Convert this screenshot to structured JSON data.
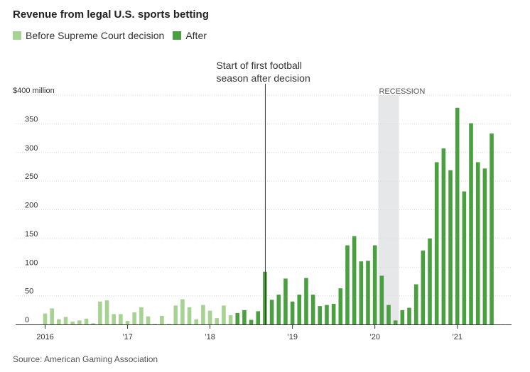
{
  "header": {
    "title": "Revenue from legal U.S. sports betting"
  },
  "legend": {
    "before": {
      "label": "Before Supreme Court decision",
      "color": "#a6d391"
    },
    "after": {
      "label": "After",
      "color": "#4aa040"
    }
  },
  "source": "Source: American Gaming Association",
  "chart_data": {
    "type": "bar",
    "title": "Revenue from legal U.S. sports betting",
    "y_unit_label": "$400 million",
    "ylim": [
      0,
      400
    ],
    "y_ticks": [
      {
        "value": 0,
        "label": "0"
      },
      {
        "value": 50,
        "label": "50"
      },
      {
        "value": 100,
        "label": "100"
      },
      {
        "value": 150,
        "label": "150"
      },
      {
        "value": 200,
        "label": "200"
      },
      {
        "value": 250,
        "label": "250"
      },
      {
        "value": 300,
        "label": "300"
      },
      {
        "value": 350,
        "label": "350"
      }
    ],
    "x_ticks": [
      {
        "date": "2016-01",
        "label": "2016"
      },
      {
        "date": "2017-01",
        "label": "’17"
      },
      {
        "date": "2018-01",
        "label": "’18"
      },
      {
        "date": "2019-01",
        "label": "’19"
      },
      {
        "date": "2020-01",
        "label": "’20"
      },
      {
        "date": "2021-01",
        "label": "’21"
      }
    ],
    "grid": true,
    "legend_position": "top-left",
    "annotation": {
      "date": "2018-09",
      "text_lines": [
        "Start of first football",
        "season after decision"
      ]
    },
    "recession": {
      "start": "2020-02",
      "end": "2020-04",
      "label": "RECESSION"
    },
    "series": [
      {
        "name": "Before Supreme Court decision",
        "color": "#a6d391",
        "points": [
          {
            "date": "2016-01",
            "value": 19
          },
          {
            "date": "2016-02",
            "value": 28
          },
          {
            "date": "2016-03",
            "value": 9
          },
          {
            "date": "2016-04",
            "value": 13
          },
          {
            "date": "2016-05",
            "value": 5
          },
          {
            "date": "2016-06",
            "value": 7
          },
          {
            "date": "2016-07",
            "value": 10
          },
          {
            "date": "2016-08",
            "value": 2
          },
          {
            "date": "2016-09",
            "value": 40
          },
          {
            "date": "2016-10",
            "value": 42
          },
          {
            "date": "2016-11",
            "value": 18
          },
          {
            "date": "2016-12",
            "value": 18
          },
          {
            "date": "2017-01",
            "value": 6
          },
          {
            "date": "2017-02",
            "value": 21
          },
          {
            "date": "2017-03",
            "value": 30
          },
          {
            "date": "2017-04",
            "value": 14
          },
          {
            "date": "2017-05",
            "value": 1
          },
          {
            "date": "2017-06",
            "value": 15
          },
          {
            "date": "2017-07",
            "value": 0
          },
          {
            "date": "2017-08",
            "value": 33
          },
          {
            "date": "2017-09",
            "value": 44
          },
          {
            "date": "2017-10",
            "value": 30
          },
          {
            "date": "2017-11",
            "value": 9
          },
          {
            "date": "2017-12",
            "value": 34
          },
          {
            "date": "2018-01",
            "value": 24
          },
          {
            "date": "2018-02",
            "value": 11
          },
          {
            "date": "2018-03",
            "value": 33
          },
          {
            "date": "2018-04",
            "value": 16
          }
        ]
      },
      {
        "name": "After",
        "color": "#4aa040",
        "points": [
          {
            "date": "2018-05",
            "value": 20
          },
          {
            "date": "2018-06",
            "value": 25
          },
          {
            "date": "2018-07",
            "value": 8
          },
          {
            "date": "2018-08",
            "value": 23
          },
          {
            "date": "2018-09",
            "value": 92
          },
          {
            "date": "2018-10",
            "value": 43
          },
          {
            "date": "2018-11",
            "value": 52
          },
          {
            "date": "2018-12",
            "value": 80
          },
          {
            "date": "2019-01",
            "value": 40
          },
          {
            "date": "2019-02",
            "value": 52
          },
          {
            "date": "2019-03",
            "value": 81
          },
          {
            "date": "2019-04",
            "value": 52
          },
          {
            "date": "2019-05",
            "value": 32
          },
          {
            "date": "2019-06",
            "value": 34
          },
          {
            "date": "2019-07",
            "value": 36
          },
          {
            "date": "2019-08",
            "value": 63
          },
          {
            "date": "2019-09",
            "value": 138
          },
          {
            "date": "2019-10",
            "value": 154
          },
          {
            "date": "2019-11",
            "value": 110
          },
          {
            "date": "2019-12",
            "value": 111
          },
          {
            "date": "2020-01",
            "value": 138
          },
          {
            "date": "2020-02",
            "value": 85
          },
          {
            "date": "2020-03",
            "value": 34
          },
          {
            "date": "2020-04",
            "value": 7
          },
          {
            "date": "2020-05",
            "value": 25
          },
          {
            "date": "2020-06",
            "value": 29
          },
          {
            "date": "2020-07",
            "value": 70
          },
          {
            "date": "2020-08",
            "value": 129
          },
          {
            "date": "2020-09",
            "value": 150
          },
          {
            "date": "2020-10",
            "value": 283
          },
          {
            "date": "2020-11",
            "value": 307
          },
          {
            "date": "2020-12",
            "value": 269
          },
          {
            "date": "2021-01",
            "value": 378
          },
          {
            "date": "2021-02",
            "value": 232
          },
          {
            "date": "2021-03",
            "value": 351
          },
          {
            "date": "2021-04",
            "value": 283
          },
          {
            "date": "2021-05",
            "value": 272
          },
          {
            "date": "2021-06",
            "value": 333
          }
        ]
      }
    ]
  }
}
